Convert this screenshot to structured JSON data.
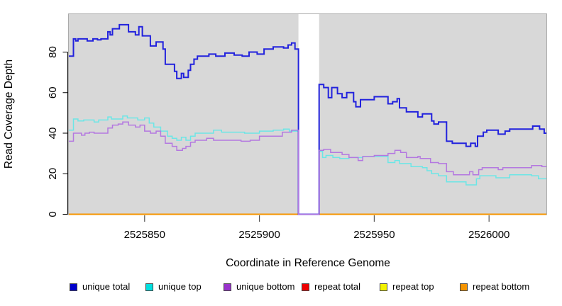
{
  "chart_data": {
    "type": "step-line",
    "title": "",
    "xlabel": "Coordinate in Reference Genome",
    "ylabel": "Read Coverage Depth",
    "xlim": [
      2525817,
      2526025
    ],
    "ylim": [
      0,
      98
    ],
    "grid": false,
    "panel_background": "#d8d8d8",
    "panel_border": "#ababab",
    "gap_region": [
      2525917,
      2525926
    ],
    "gap_color": "#ffffff",
    "x_ticks": [
      2525850,
      2525900,
      2525950,
      2526000
    ],
    "x_tick_labels": [
      "2525850",
      "2525900",
      "2525950",
      "2526000"
    ],
    "y_ticks": [
      0,
      20,
      40,
      60,
      80
    ],
    "y_tick_labels": [
      "0",
      "20",
      "40",
      "60",
      "80"
    ],
    "series": [
      {
        "name": "unique total",
        "line_color": "#2222dd",
        "line_width": 2,
        "gap_break": true,
        "left": [
          [
            2525817,
            78
          ],
          [
            2525819,
            86.5
          ],
          [
            2525820,
            85.5
          ],
          [
            2525821,
            86.5
          ],
          [
            2525825,
            85.5
          ],
          [
            2525827.5,
            86.5
          ],
          [
            2525829.5,
            86
          ],
          [
            2525831,
            86.5
          ],
          [
            2525834,
            90
          ],
          [
            2525835,
            88.5
          ],
          [
            2525836,
            91.5
          ],
          [
            2525839,
            93.5
          ],
          [
            2525843,
            90
          ],
          [
            2525846,
            88.5
          ],
          [
            2525847.5,
            92.5
          ],
          [
            2525849,
            88
          ],
          [
            2525852.5,
            83
          ],
          [
            2525855,
            85
          ],
          [
            2525858,
            81.5
          ],
          [
            2525859,
            74
          ],
          [
            2525863,
            70.5
          ],
          [
            2525864,
            67
          ],
          [
            2525866,
            69.5
          ],
          [
            2525867,
            67.5
          ],
          [
            2525869,
            71
          ],
          [
            2525870,
            74
          ],
          [
            2525871.5,
            76.5
          ],
          [
            2525873,
            78
          ],
          [
            2525878,
            79
          ],
          [
            2525881,
            78
          ],
          [
            2525885,
            79.5
          ],
          [
            2525889,
            78.5
          ],
          [
            2525892.5,
            78
          ],
          [
            2525895.5,
            80
          ],
          [
            2525899,
            79
          ],
          [
            2525902,
            81.5
          ],
          [
            2525906,
            82.5
          ],
          [
            2525910.5,
            82
          ],
          [
            2525912.5,
            83.5
          ],
          [
            2525914,
            84.5
          ],
          [
            2525915.5,
            81.5
          ]
        ],
        "right": [
          [
            2525926,
            64
          ],
          [
            2525928,
            62.5
          ],
          [
            2525930,
            57.5
          ],
          [
            2525931.5,
            62.5
          ],
          [
            2525934,
            59.5
          ],
          [
            2525936,
            57.5
          ],
          [
            2525938,
            60
          ],
          [
            2525941,
            55.5
          ],
          [
            2525942,
            53
          ],
          [
            2525944,
            56.5
          ],
          [
            2525950,
            58
          ],
          [
            2525956,
            54.5
          ],
          [
            2525958,
            55.5
          ],
          [
            2525960,
            57
          ],
          [
            2525961,
            52.5
          ],
          [
            2525964,
            50.5
          ],
          [
            2525969,
            48
          ],
          [
            2525971,
            49.5
          ],
          [
            2525975,
            46
          ],
          [
            2525976,
            44.5
          ],
          [
            2525978,
            45.5
          ],
          [
            2525981.5,
            36
          ],
          [
            2525984,
            35
          ],
          [
            2525990,
            33.5
          ],
          [
            2525992,
            35
          ],
          [
            2525994,
            33.5
          ],
          [
            2525995,
            38.5
          ],
          [
            2525997.5,
            40.5
          ],
          [
            2525999,
            41.5
          ],
          [
            2526004,
            39.5
          ],
          [
            2526007,
            41
          ],
          [
            2526009,
            42
          ],
          [
            2526019,
            43.5
          ],
          [
            2526022,
            42
          ],
          [
            2526024,
            40
          ]
        ]
      },
      {
        "name": "unique top",
        "line_color": "#6ce6e6",
        "line_width": 1.5,
        "gap_break": true,
        "left": [
          [
            2525817,
            41.5
          ],
          [
            2525819,
            47
          ],
          [
            2525821,
            46
          ],
          [
            2525823.5,
            46.5
          ],
          [
            2525828,
            45.5
          ],
          [
            2525830,
            46.5
          ],
          [
            2525834,
            48
          ],
          [
            2525835.5,
            47
          ],
          [
            2525840.5,
            48.5
          ],
          [
            2525842.5,
            47.5
          ],
          [
            2525847,
            46.5
          ],
          [
            2525850,
            47.5
          ],
          [
            2525852,
            45
          ],
          [
            2525854,
            43
          ],
          [
            2525857,
            41
          ],
          [
            2525860,
            38.5
          ],
          [
            2525862,
            37.5
          ],
          [
            2525864,
            36.5
          ],
          [
            2525866,
            38
          ],
          [
            2525868,
            36.5
          ],
          [
            2525870,
            38.5
          ],
          [
            2525872,
            40
          ],
          [
            2525880,
            41.5
          ],
          [
            2525883.5,
            40.5
          ],
          [
            2525893.5,
            40
          ],
          [
            2525900,
            41
          ],
          [
            2525906,
            41.5
          ],
          [
            2525910.5,
            42
          ],
          [
            2525913,
            41
          ]
        ],
        "right": [
          [
            2525926,
            31
          ],
          [
            2525927.5,
            28
          ],
          [
            2525929,
            29
          ],
          [
            2525932,
            28
          ],
          [
            2525935,
            27.5
          ],
          [
            2525939,
            28
          ],
          [
            2525945,
            28.5
          ],
          [
            2525956,
            25.5
          ],
          [
            2525959,
            26.5
          ],
          [
            2525961,
            25
          ],
          [
            2525966,
            23.5
          ],
          [
            2525971,
            23
          ],
          [
            2525973,
            21.5
          ],
          [
            2525975,
            20
          ],
          [
            2525978,
            19
          ],
          [
            2525981.5,
            16
          ],
          [
            2525990,
            14.5
          ],
          [
            2525994.5,
            17.5
          ],
          [
            2525996,
            19
          ],
          [
            2526003,
            18
          ],
          [
            2526009,
            19.5
          ],
          [
            2526018.5,
            19
          ],
          [
            2526021.5,
            17.5
          ]
        ]
      },
      {
        "name": "unique bottom",
        "line_color": "#b478e0",
        "line_width": 1.5,
        "gap_break": true,
        "left": [
          [
            2525817,
            36
          ],
          [
            2525819,
            40
          ],
          [
            2525822.5,
            39
          ],
          [
            2525824,
            40
          ],
          [
            2525826,
            40.5
          ],
          [
            2525828,
            40
          ],
          [
            2525834,
            42.5
          ],
          [
            2525836,
            44
          ],
          [
            2525838.5,
            44.5
          ],
          [
            2525840.5,
            45.5
          ],
          [
            2525843,
            44
          ],
          [
            2525846,
            43
          ],
          [
            2525848,
            44
          ],
          [
            2525850,
            41
          ],
          [
            2525852.5,
            40
          ],
          [
            2525855,
            41
          ],
          [
            2525857,
            38.5
          ],
          [
            2525859,
            35
          ],
          [
            2525862,
            33.5
          ],
          [
            2525864,
            31.5
          ],
          [
            2525866.5,
            32.5
          ],
          [
            2525868,
            33.5
          ],
          [
            2525870,
            35.5
          ],
          [
            2525872,
            36.5
          ],
          [
            2525877,
            37.5
          ],
          [
            2525880,
            36.5
          ],
          [
            2525892,
            36
          ],
          [
            2525896,
            36.5
          ],
          [
            2525900,
            38.5
          ],
          [
            2525910,
            40.5
          ],
          [
            2525914,
            41.5
          ]
        ],
        "right": [
          [
            2525926,
            31.5
          ],
          [
            2525928,
            32
          ],
          [
            2525931,
            30.5
          ],
          [
            2525936,
            29.5
          ],
          [
            2525939,
            28
          ],
          [
            2525943,
            26.5
          ],
          [
            2525945,
            28.5
          ],
          [
            2525950,
            29
          ],
          [
            2525956,
            30
          ],
          [
            2525959,
            31.5
          ],
          [
            2525961.5,
            30.5
          ],
          [
            2525964,
            28
          ],
          [
            2525969,
            28.5
          ],
          [
            2525970,
            27.5
          ],
          [
            2525974.5,
            25.5
          ],
          [
            2525978,
            25
          ],
          [
            2525981.5,
            21
          ],
          [
            2525984.5,
            19.5
          ],
          [
            2525991.5,
            21
          ],
          [
            2525993,
            19.5
          ],
          [
            2525995.5,
            22
          ],
          [
            2525997,
            23
          ],
          [
            2526004,
            22
          ],
          [
            2526006,
            23
          ],
          [
            2526018.5,
            24
          ],
          [
            2526023,
            23.5
          ]
        ]
      },
      {
        "name": "repeat total",
        "line_color": "#ee0000",
        "line_width": 1.5,
        "gap_break": false,
        "full": [
          [
            2525817,
            0
          ]
        ]
      },
      {
        "name": "repeat top",
        "line_color": "#f2f200",
        "line_width": 1.5,
        "gap_break": false,
        "full": [
          [
            2525817,
            0
          ]
        ]
      },
      {
        "name": "repeat bottom",
        "line_color": "#f59400",
        "line_width": 2,
        "gap_break": false,
        "full": [
          [
            2525817,
            0
          ]
        ]
      }
    ]
  },
  "legend": [
    {
      "label": "unique total",
      "swatch_color": "#0000cc"
    },
    {
      "label": "unique top",
      "swatch_color": "#00e0e0"
    },
    {
      "label": "unique bottom",
      "swatch_color": "#9933cc"
    },
    {
      "label": "repeat total",
      "swatch_color": "#ee0000"
    },
    {
      "label": "repeat top",
      "swatch_color": "#f2f200"
    },
    {
      "label": "repeat bottom",
      "swatch_color": "#f59400"
    }
  ]
}
